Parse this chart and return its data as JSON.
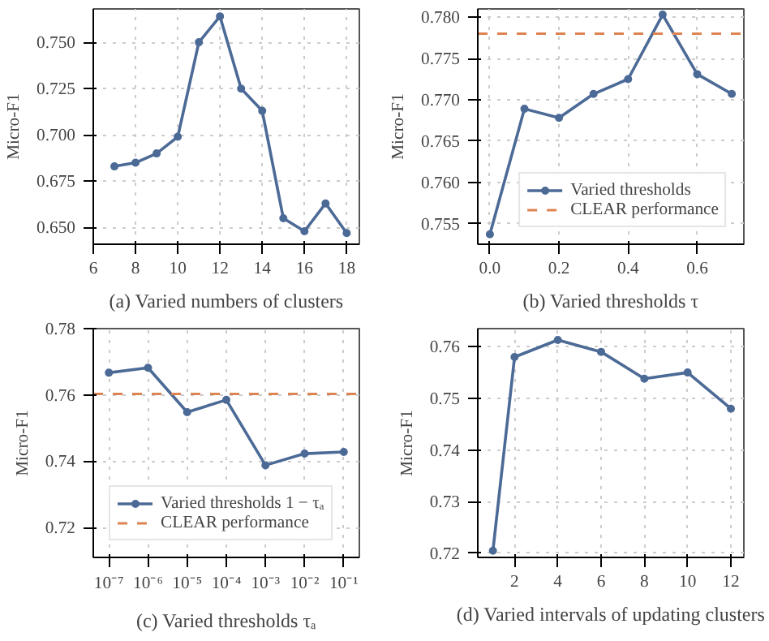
{
  "chart_data": [
    {
      "type": "line",
      "title": "(a) Varied numbers of clusters",
      "ylabel": "Micro-F1",
      "x": [
        7,
        8,
        9,
        10,
        11,
        12,
        13,
        14,
        15,
        16,
        17,
        18
      ],
      "series": [
        {
          "color": "#4c6a96",
          "values": [
            0.683,
            0.685,
            0.69,
            0.699,
            0.75,
            0.764,
            0.725,
            0.713,
            0.655,
            0.648,
            0.663,
            0.647
          ]
        }
      ],
      "xlim": [
        6,
        18.6
      ],
      "xticks": [
        6,
        8,
        10,
        12,
        14,
        16,
        18
      ],
      "ylim": [
        0.641,
        0.768
      ],
      "yticks": [
        {
          "value": 0.65,
          "label": "0.650"
        },
        0.675,
        {
          "value": 0.7,
          "label": "0.700"
        },
        0.725,
        {
          "value": 0.75,
          "label": "0.750"
        }
      ],
      "grid": true,
      "marker": "circle",
      "line_style": "solid",
      "legend": false
    },
    {
      "type": "line",
      "title": "(b) Varied thresholds τ",
      "ylabel": "Micro-F1",
      "x": [
        0.0,
        0.1,
        0.2,
        0.3,
        0.4,
        0.5,
        0.6,
        0.7
      ],
      "series": [
        {
          "name": "Varied thresholds",
          "color": "#4c6a96",
          "values": [
            0.7537,
            0.7689,
            0.7678,
            0.7707,
            0.7725,
            0.7803,
            0.7731,
            0.7707
          ]
        }
      ],
      "ref_lines": [
        {
          "axis": "y",
          "value": 0.778,
          "label": "CLEAR performance",
          "color": "#dd8452",
          "line_style": "dashed"
        }
      ],
      "xlim": [
        -0.035,
        0.735
      ],
      "xticks": [
        {
          "value": 0.0,
          "label": "0.0"
        },
        0.2,
        0.4,
        0.6
      ],
      "ylim": [
        0.7525,
        0.781
      ],
      "yticks": [
        0.755,
        {
          "value": 0.76,
          "label": "0.760"
        },
        0.765,
        {
          "value": 0.77,
          "label": "0.770"
        },
        0.775,
        {
          "value": 0.78,
          "label": "0.780"
        }
      ],
      "grid": true,
      "marker": "circle",
      "line_style": "solid",
      "legend": "bottom right"
    },
    {
      "type": "line",
      "title": "(c) Varied thresholds τₐ",
      "ylabel": "Micro-F1",
      "x": [
        1e-07,
        1e-06,
        1e-05,
        0.0001,
        0.001,
        0.01,
        0.1
      ],
      "series": [
        {
          "name": "Varied thresholds 1 − τₐ",
          "color": "#4c6a96",
          "values": [
            0.7667,
            0.7682,
            0.7548,
            0.7585,
            0.7388,
            0.7423,
            0.7428
          ]
        }
      ],
      "ref_lines": [
        {
          "axis": "y",
          "value": 0.7603,
          "label": "CLEAR performance",
          "color": "#dd8452",
          "line_style": "dashed"
        }
      ],
      "log": "x",
      "xlim": [
        4e-08,
        0.25
      ],
      "xticks": [
        {
          "value": 1e-07,
          "label": "10⁻⁷"
        },
        {
          "value": 1e-06,
          "label": "10⁻⁶"
        },
        {
          "value": 1e-05,
          "label": "10⁻⁵"
        },
        {
          "value": 0.0001,
          "label": "10⁻⁴"
        },
        {
          "value": 0.001,
          "label": "10⁻³"
        },
        {
          "value": 0.01,
          "label": "10⁻²"
        },
        {
          "value": 0.1,
          "label": "10⁻¹"
        }
      ],
      "ylim": [
        0.711,
        0.78
      ],
      "yticks": [
        0.72,
        0.74,
        0.76,
        0.78
      ],
      "grid": true,
      "marker": "circle",
      "line_style": "solid",
      "legend": "bottom left"
    },
    {
      "type": "line",
      "title": "(d) Varied intervals of updating clusters",
      "ylabel": "Micro-F1",
      "x": [
        1,
        2,
        4,
        6,
        8,
        10,
        12
      ],
      "series": [
        {
          "color": "#4c6a96",
          "values": [
            0.7205,
            0.758,
            0.7613,
            0.759,
            0.7538,
            0.755,
            0.748
          ]
        }
      ],
      "xlim": [
        0.3,
        12.6
      ],
      "xticks": [
        2,
        4,
        6,
        8,
        10,
        12
      ],
      "ylim": [
        0.7192,
        0.7635
      ],
      "yticks": [
        0.72,
        0.73,
        0.74,
        0.75,
        0.76
      ],
      "grid": true,
      "marker": "circle",
      "line_style": "solid",
      "legend": false
    }
  ]
}
